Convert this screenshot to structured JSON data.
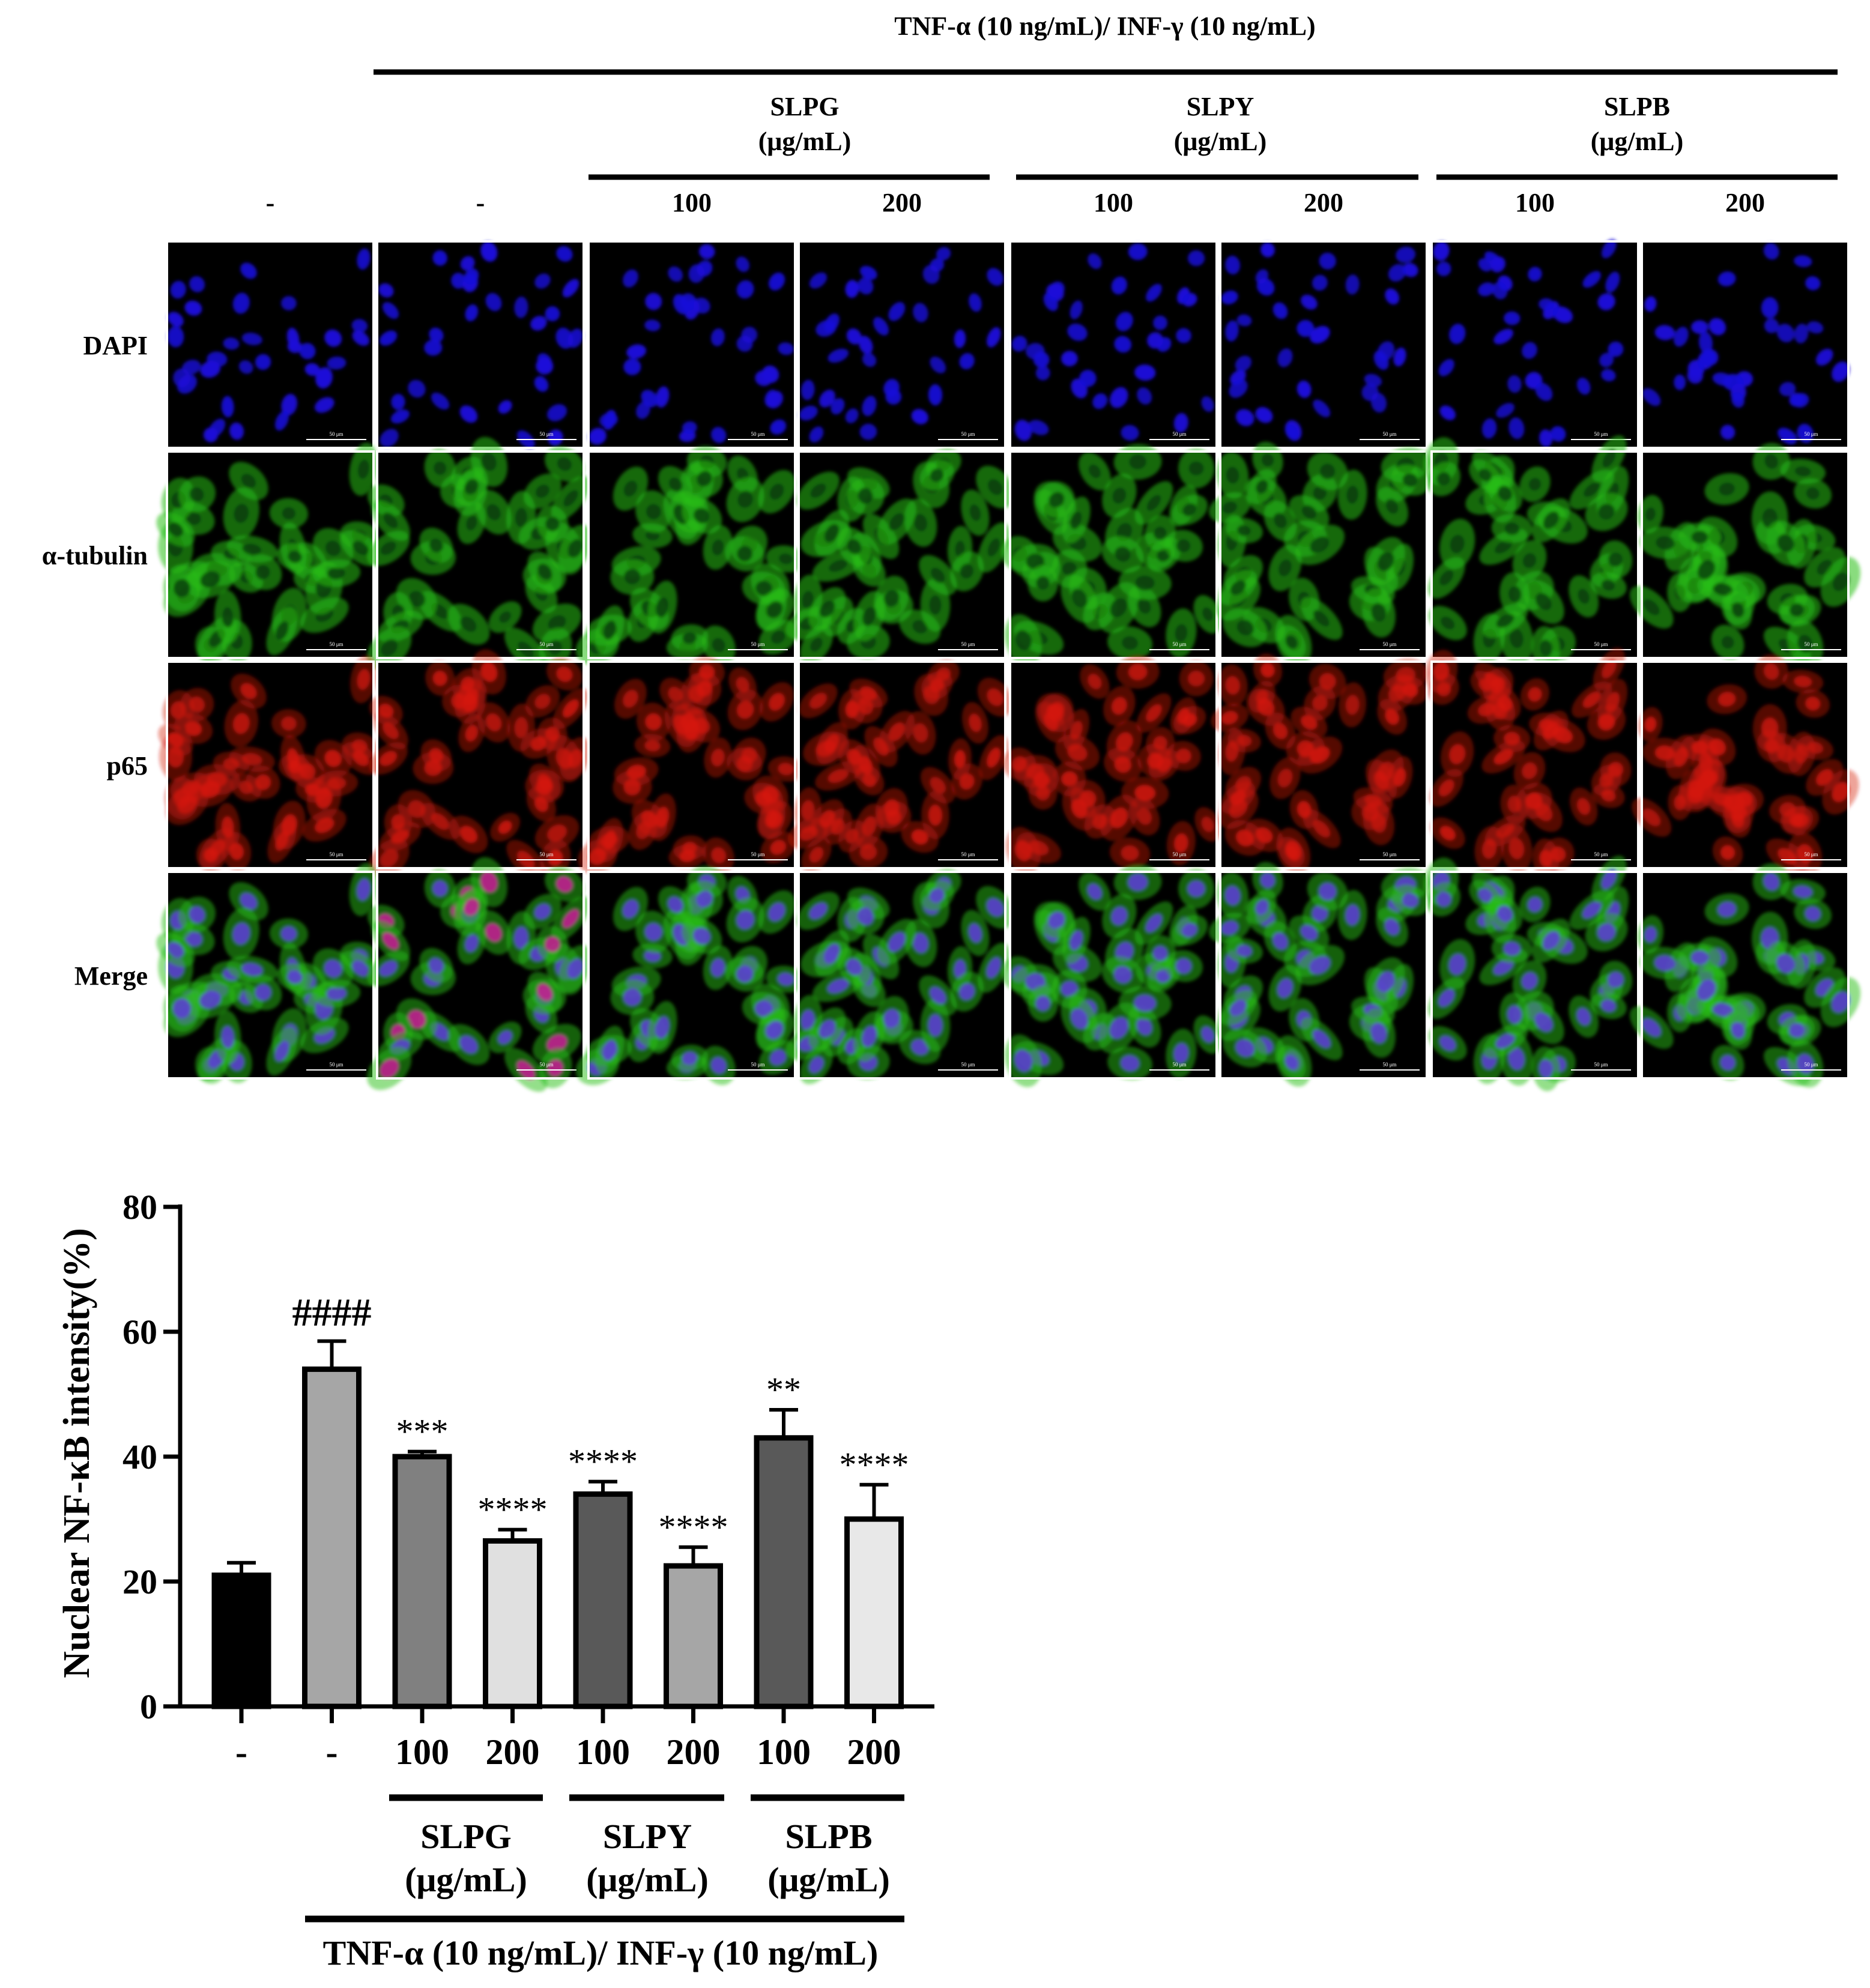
{
  "panel_top": {
    "treatment_label": "TNF-α (10 ng/mL)/ INF-γ (10 ng/mL)",
    "groups": [
      {
        "name": "SLPG",
        "unit": "(μg/mL)"
      },
      {
        "name": "SLPY",
        "unit": "(μg/mL)"
      },
      {
        "name": "SLPB",
        "unit": "(μg/mL)"
      }
    ],
    "column_labels": [
      "-",
      "-",
      "100",
      "200",
      "100",
      "200",
      "100",
      "200"
    ],
    "rows": [
      {
        "label": "DAPI",
        "channel": "blue"
      },
      {
        "label": "α-tubulin",
        "channel": "green"
      },
      {
        "label": "p65",
        "channel": "red"
      },
      {
        "label": "Merge",
        "channel": "merge"
      }
    ],
    "scale_bar_label": "50 μm",
    "channel_colors": {
      "blue": "#1a10d8",
      "green": "#28c018",
      "red": "#d41810",
      "background": "#000000"
    }
  },
  "chart_data": {
    "type": "bar",
    "title": "",
    "ylabel": "Nuclear NF-κB intensity(%)",
    "xlabel": "",
    "ylim": [
      0,
      80
    ],
    "yticks": [
      0,
      20,
      40,
      60,
      80
    ],
    "categories": [
      "-",
      "-",
      "100",
      "200",
      "100",
      "200",
      "100",
      "200"
    ],
    "values": [
      21,
      54,
      40,
      26.5,
      34,
      22.5,
      43,
      30
    ],
    "errors": [
      2,
      4.5,
      0.8,
      1.8,
      2,
      3,
      4.5,
      5.5
    ],
    "bar_colors": [
      "#000000",
      "#a6a6a6",
      "#808080",
      "#e0e0e0",
      "#595959",
      "#a6a6a6",
      "#595959",
      "#e8e8e8"
    ],
    "significance": [
      "",
      "####",
      "***",
      "****",
      "****",
      "****",
      "**",
      "****"
    ],
    "groups": [
      {
        "name": "SLPG",
        "unit": "(μg/mL)"
      },
      {
        "name": "SLPY",
        "unit": "(μg/mL)"
      },
      {
        "name": "SLPB",
        "unit": "(μg/mL)"
      }
    ],
    "treatment_label": "TNF-α (10 ng/mL)/ INF-γ (10 ng/mL)"
  }
}
